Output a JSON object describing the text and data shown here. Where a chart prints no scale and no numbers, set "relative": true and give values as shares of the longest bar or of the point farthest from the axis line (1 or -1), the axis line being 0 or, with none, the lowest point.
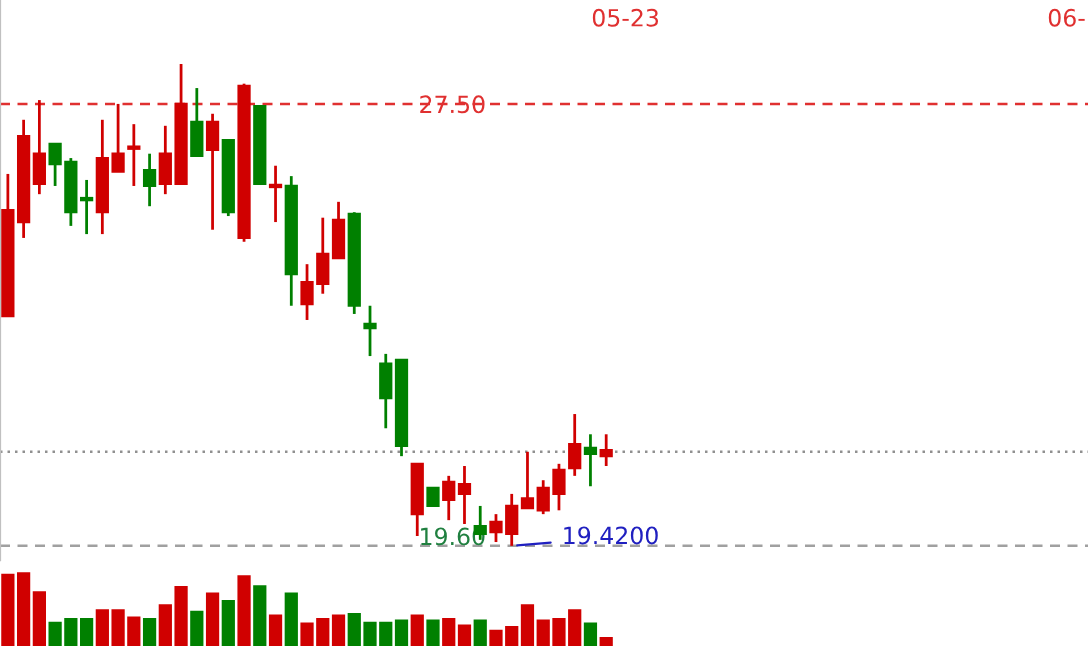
{
  "chart_data": [
    {
      "type": "candlestick",
      "categories": [
        null,
        null,
        null,
        null,
        null,
        null,
        null,
        null,
        null,
        null,
        null,
        null,
        null,
        null,
        null,
        null,
        null,
        null,
        null,
        null,
        null,
        null,
        null,
        null,
        null,
        null,
        null,
        null,
        null,
        null,
        null,
        null,
        null,
        null,
        null,
        null,
        null,
        null,
        null
      ],
      "ylim": [
        19.16,
        29.4
      ],
      "yticks": [
        {
          "value": 27.5,
          "label": "27.50"
        },
        {
          "value": 19.6,
          "label": "19.60"
        }
      ],
      "ohlc": [
        [
          23.62,
          26.22,
          23.62,
          25.56
        ],
        [
          25.34,
          27.21,
          25.05,
          26.91
        ],
        [
          26.04,
          27.57,
          25.85,
          26.59
        ],
        [
          26.77,
          26.77,
          26.0,
          26.4
        ],
        [
          26.44,
          26.51,
          25.27,
          25.52
        ],
        [
          25.78,
          26.11,
          25.12,
          25.74
        ],
        [
          25.52,
          27.21,
          25.12,
          26.51
        ],
        [
          26.26,
          27.5,
          26.26,
          26.59
        ],
        [
          26.68,
          27.13,
          26.0,
          26.72
        ],
        [
          26.29,
          26.59,
          25.63,
          26.0
        ],
        [
          26.04,
          27.1,
          25.85,
          26.59
        ],
        [
          26.04,
          28.23,
          26.04,
          27.5
        ],
        [
          27.17,
          27.79,
          26.55,
          26.55
        ],
        [
          26.66,
          27.32,
          25.2,
          27.17
        ],
        [
          26.84,
          26.84,
          25.45,
          25.52
        ],
        [
          25.05,
          27.87,
          24.98,
          27.83
        ],
        [
          27.46,
          27.46,
          26.04,
          26.04
        ],
        [
          25.98,
          26.37,
          25.34,
          26.02
        ],
        [
          26.0,
          26.18,
          23.81,
          24.39
        ],
        [
          23.84,
          24.57,
          23.55,
          24.24
        ],
        [
          24.21,
          25.42,
          24.03,
          24.76
        ],
        [
          24.68,
          25.71,
          24.68,
          25.38
        ],
        [
          25.49,
          25.52,
          23.66,
          23.81
        ],
        [
          23.48,
          23.81,
          22.89,
          23.4
        ],
        [
          22.75,
          22.93,
          21.57,
          22.12
        ],
        [
          22.82,
          22.82,
          21.06,
          21.25
        ],
        [
          20.0,
          20.92,
          19.6,
          20.92
        ],
        [
          20.48,
          20.48,
          20.15,
          20.15
        ],
        [
          20.26,
          20.7,
          19.89,
          20.59
        ],
        [
          20.37,
          20.88,
          19.82,
          20.55
        ],
        [
          19.78,
          20.15,
          19.53,
          19.64
        ],
        [
          19.67,
          20.0,
          19.49,
          19.86
        ],
        [
          19.64,
          20.37,
          19.42,
          20.15
        ],
        [
          20.11,
          21.14,
          20.11,
          20.29
        ],
        [
          20.07,
          20.62,
          20.0,
          20.48
        ],
        [
          20.37,
          20.92,
          20.07,
          20.81
        ],
        [
          20.84,
          21.83,
          20.7,
          21.28
        ],
        [
          21.21,
          21.46,
          20.51,
          21.1
        ],
        [
          21.06,
          21.46,
          20.88,
          21.17
        ]
      ],
      "colors": [
        "#d00000",
        "#d00000",
        "#d00000",
        "#008000",
        "#008000",
        "#008000",
        "#d00000",
        "#d00000",
        "#d00000",
        "#008000",
        "#d00000",
        "#d00000",
        "#008000",
        "#d00000",
        "#008000",
        "#d00000",
        "#008000",
        "#d00000",
        "#008000",
        "#d00000",
        "#d00000",
        "#d00000",
        "#008000",
        "#008000",
        "#008000",
        "#008000",
        "#d00000",
        "#008000",
        "#d00000",
        "#d00000",
        "#008000",
        "#d00000",
        "#d00000",
        "#d00000",
        "#d00000",
        "#d00000",
        "#d00000",
        "#008000",
        "#d00000"
      ],
      "ref_lines": [
        {
          "axis": "y",
          "value": 27.5,
          "color": "#e03030",
          "line_style": "dashed"
        },
        {
          "axis": "y",
          "value": 21.14,
          "color": "#909090",
          "line_style": "dotted"
        },
        {
          "axis": "y",
          "value": 19.42,
          "label": "19.4200",
          "color": "#a0a0a0",
          "line_style": "dashed"
        }
      ],
      "annotations": [
        "05-23",
        "06-"
      ]
    },
    {
      "type": "bar",
      "relative": true,
      "categories": [
        null,
        null,
        null,
        null,
        null,
        null,
        null,
        null,
        null,
        null,
        null,
        null,
        null,
        null,
        null,
        null,
        null,
        null,
        null,
        null,
        null,
        null,
        null,
        null,
        null,
        null,
        null,
        null,
        null,
        null,
        null,
        null,
        null,
        null,
        null,
        null,
        null,
        null,
        null
      ],
      "values": [
        0.98,
        1.0,
        0.74,
        0.32,
        0.37,
        0.37,
        0.49,
        0.49,
        0.39,
        0.37,
        0.56,
        0.81,
        0.47,
        0.72,
        0.62,
        0.96,
        0.82,
        0.42,
        0.72,
        0.31,
        0.37,
        0.42,
        0.44,
        0.32,
        0.32,
        0.35,
        0.42,
        0.35,
        0.37,
        0.28,
        0.35,
        0.21,
        0.26,
        0.56,
        0.35,
        0.37,
        0.49,
        0.31,
        0.11
      ],
      "colors": [
        "#d00000",
        "#d00000",
        "#d00000",
        "#008000",
        "#008000",
        "#008000",
        "#d00000",
        "#d00000",
        "#d00000",
        "#008000",
        "#d00000",
        "#d00000",
        "#008000",
        "#d00000",
        "#008000",
        "#d00000",
        "#008000",
        "#d00000",
        "#008000",
        "#d00000",
        "#d00000",
        "#d00000",
        "#008000",
        "#008000",
        "#008000",
        "#008000",
        "#d00000",
        "#008000",
        "#d00000",
        "#d00000",
        "#008000",
        "#d00000",
        "#d00000",
        "#d00000",
        "#d00000",
        "#d00000",
        "#d00000",
        "#008000",
        "#d00000"
      ]
    }
  ]
}
